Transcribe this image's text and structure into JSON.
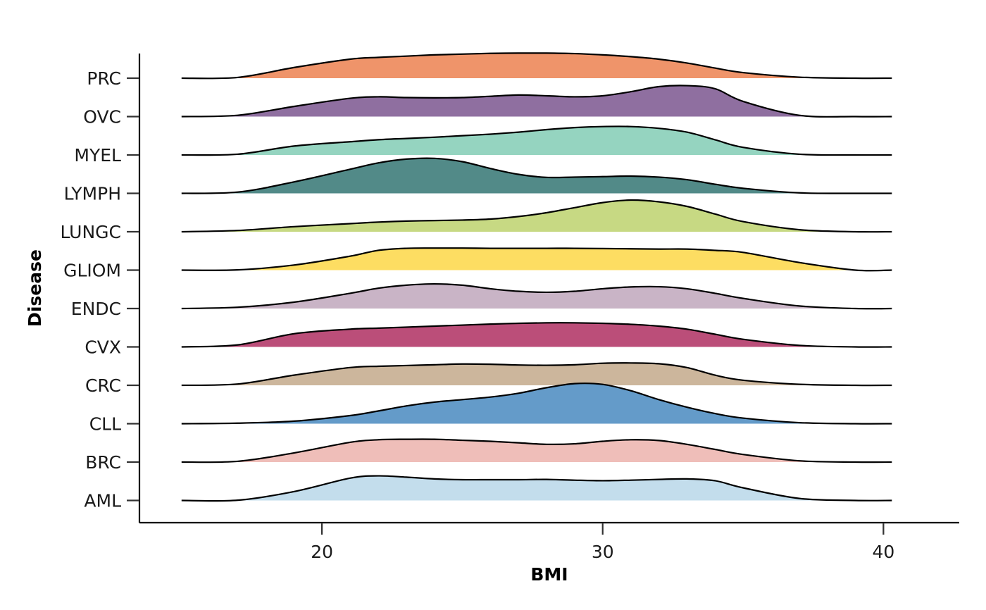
{
  "chart_data": {
    "type": "ridgeline",
    "title": "",
    "xlabel": "BMI",
    "ylabel": "Disease",
    "xlim": [
      13.5,
      42.7
    ],
    "x_ticks": [
      20,
      30,
      40
    ],
    "grid": false,
    "legend": "none",
    "density_x": [
      15,
      17,
      19,
      21,
      22,
      23,
      24,
      25,
      26,
      27,
      28,
      29,
      30,
      31,
      32,
      33,
      34,
      35,
      37,
      39,
      40.3
    ],
    "series": [
      {
        "name": "AML",
        "color": "#C3DDEC",
        "density": [
          0,
          0.01,
          0.35,
          0.88,
          0.97,
          0.92,
          0.85,
          0.82,
          0.82,
          0.82,
          0.83,
          0.8,
          0.78,
          0.8,
          0.83,
          0.85,
          0.78,
          0.5,
          0.08,
          0,
          0
        ]
      },
      {
        "name": "BRC",
        "color": "#EFBEB9",
        "density": [
          0,
          0.03,
          0.36,
          0.78,
          0.88,
          0.9,
          0.9,
          0.86,
          0.82,
          0.76,
          0.7,
          0.72,
          0.82,
          0.88,
          0.85,
          0.7,
          0.5,
          0.3,
          0.05,
          0,
          0
        ]
      },
      {
        "name": "CLL",
        "color": "#649BC9",
        "density": [
          0,
          0.02,
          0.1,
          0.32,
          0.5,
          0.7,
          0.85,
          0.95,
          1.05,
          1.2,
          1.42,
          1.58,
          1.55,
          1.3,
          0.95,
          0.65,
          0.4,
          0.22,
          0.04,
          0,
          0
        ]
      },
      {
        "name": "CRC",
        "color": "#CCB69C",
        "density": [
          0,
          0.05,
          0.4,
          0.7,
          0.75,
          0.78,
          0.81,
          0.84,
          0.83,
          0.8,
          0.79,
          0.81,
          0.87,
          0.88,
          0.85,
          0.7,
          0.4,
          0.2,
          0.04,
          0,
          0
        ]
      },
      {
        "name": "CVX",
        "color": "#BB4E79",
        "density": [
          0,
          0.08,
          0.52,
          0.7,
          0.74,
          0.78,
          0.82,
          0.86,
          0.9,
          0.93,
          0.95,
          0.95,
          0.93,
          0.89,
          0.82,
          0.7,
          0.5,
          0.3,
          0.06,
          0,
          0
        ]
      },
      {
        "name": "ENDC",
        "color": "#C9B4C6",
        "density": [
          0,
          0.05,
          0.25,
          0.6,
          0.8,
          0.92,
          0.97,
          0.92,
          0.78,
          0.68,
          0.64,
          0.68,
          0.78,
          0.85,
          0.86,
          0.78,
          0.6,
          0.4,
          0.1,
          0,
          0
        ]
      },
      {
        "name": "GLIOM",
        "color": "#FDDD62",
        "density": [
          0,
          0.01,
          0.2,
          0.55,
          0.78,
          0.86,
          0.87,
          0.87,
          0.86,
          0.86,
          0.86,
          0.86,
          0.85,
          0.84,
          0.83,
          0.83,
          0.78,
          0.7,
          0.3,
          0,
          0
        ]
      },
      {
        "name": "LUNGC",
        "color": "#C7D983",
        "density": [
          0,
          0.05,
          0.2,
          0.32,
          0.38,
          0.42,
          0.44,
          0.46,
          0.5,
          0.6,
          0.75,
          0.95,
          1.15,
          1.25,
          1.18,
          1.0,
          0.7,
          0.4,
          0.08,
          0,
          0
        ]
      },
      {
        "name": "LYMPH",
        "color": "#528A88",
        "density": [
          0,
          0.05,
          0.45,
          0.95,
          1.2,
          1.35,
          1.38,
          1.25,
          0.98,
          0.75,
          0.63,
          0.64,
          0.66,
          0.68,
          0.64,
          0.54,
          0.36,
          0.2,
          0.02,
          0,
          0
        ]
      },
      {
        "name": "MYEL",
        "color": "#95D4C0",
        "density": [
          0,
          0.03,
          0.35,
          0.52,
          0.6,
          0.65,
          0.7,
          0.76,
          0.82,
          0.9,
          1.0,
          1.08,
          1.12,
          1.12,
          1.05,
          0.9,
          0.6,
          0.3,
          0.03,
          0,
          0
        ]
      },
      {
        "name": "OVC",
        "color": "#8F6FA0",
        "density": [
          0,
          0.05,
          0.4,
          0.72,
          0.78,
          0.75,
          0.74,
          0.75,
          0.8,
          0.85,
          0.82,
          0.78,
          0.82,
          0.98,
          1.18,
          1.22,
          1.1,
          0.6,
          0.05,
          0,
          0
        ]
      },
      {
        "name": "PRC",
        "color": "#EF946A",
        "density": [
          0,
          0.03,
          0.42,
          0.75,
          0.82,
          0.87,
          0.92,
          0.95,
          0.98,
          0.99,
          0.99,
          0.97,
          0.92,
          0.85,
          0.75,
          0.6,
          0.4,
          0.22,
          0.04,
          0,
          0
        ]
      }
    ]
  }
}
